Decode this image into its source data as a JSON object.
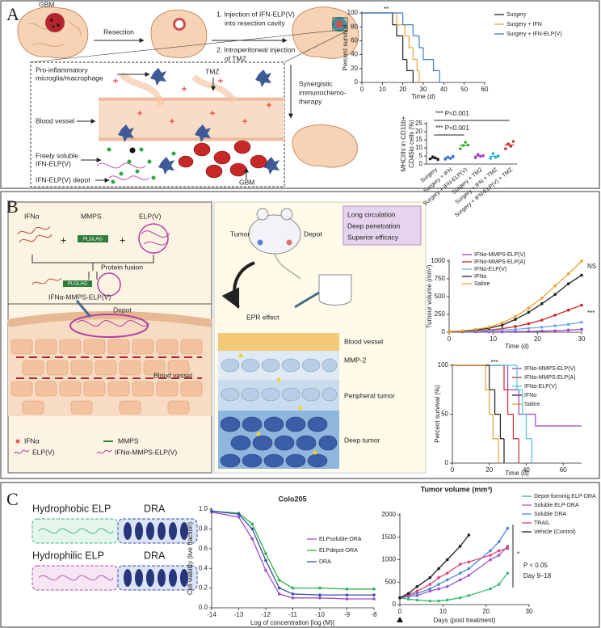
{
  "panels": {
    "a": {
      "label": "A",
      "gbm": "GBM",
      "resection": "Resection",
      "step1": [
        "1. Injection of IFN-ELP(V)",
        "into resection cavity"
      ],
      "step2": [
        "2. Intraperitoneal injection",
        "of TMZ"
      ],
      "synergy": [
        "Synergistic",
        "immunochemo-",
        "therapy"
      ],
      "microglia": [
        "Pro-inflammatory",
        "microglia/macrophage"
      ],
      "tmz": "TMZ",
      "vessel": "Blood vessel",
      "soluble": [
        "Freely soluble",
        "IFN-ELP(V)"
      ],
      "depot": "IFN-ELP(V) depot",
      "gbm2": "GBM"
    },
    "b": {
      "label": "B",
      "ifn": "IFNα",
      "mmps": "MMPS",
      "elp": "ELP(V)",
      "linker": "PLGLAG",
      "fusion": "Protein fusion",
      "linker2": "PLGLAG",
      "product": "IFNα-MMPS-ELP(V)",
      "depot": "Depot",
      "vessel": "Blood vessel",
      "legend": [
        "IFNα",
        "MMPS",
        "ELP(V)",
        "IFNα-MMPS-ELP(V)"
      ],
      "features": [
        "Long circulation",
        "Deep penetration",
        "Superior efficacy"
      ],
      "tumor": "Tumor",
      "depot2": "Depot",
      "epr": "EPR effect",
      "layers": [
        "Blood vessel",
        "MMP-2",
        "Peripheral tumor",
        "Deep tumor"
      ]
    },
    "c": {
      "label": "C",
      "elps": [
        "Hydrophobic ELP",
        "Hydrophilic ELP"
      ],
      "dra": [
        "DRA",
        "DRA"
      ]
    }
  },
  "chart_data": [
    {
      "type": "step",
      "ylabel": "Percent survival",
      "xlabel": "Time (d)",
      "xlim": [
        0,
        60
      ],
      "xticks": [
        0,
        10,
        20,
        30,
        40,
        50,
        60
      ],
      "ylim": [
        0,
        100
      ],
      "yticks": [
        0,
        20,
        40,
        60,
        80,
        100
      ],
      "annotations": [
        "**"
      ],
      "series": [
        {
          "name": "Surgery",
          "color": "#222222",
          "x": [
            0,
            15,
            17,
            20,
            22,
            25
          ],
          "values": [
            100,
            83,
            67,
            33,
            17,
            0
          ]
        },
        {
          "name": "Surgery + IFN",
          "color": "#e8a33a",
          "x": [
            0,
            17,
            21,
            23,
            25,
            27,
            28
          ],
          "values": [
            100,
            83,
            67,
            50,
            33,
            17,
            0
          ]
        },
        {
          "name": "Surgery + IFN-ELP(V)",
          "color": "#3a7fc4",
          "x": [
            0,
            20,
            25,
            28,
            30,
            35,
            38
          ],
          "values": [
            100,
            83,
            67,
            50,
            33,
            17,
            0
          ]
        }
      ]
    },
    {
      "type": "dot",
      "ylabel": [
        "MHCIIhi in CD11b+",
        "CD45lo cells (%)"
      ],
      "ylim": [
        0,
        25
      ],
      "yticks": [
        0,
        5,
        10,
        15,
        20,
        25
      ],
      "annotations": [
        "*** P<0.001",
        "*** P<0.001"
      ],
      "categories": [
        "Surgery",
        "Surgery + IFN",
        "Surgery + IFN-ELP(V)",
        "Surgery + TMZ",
        "Surgery + IFN + TMZ",
        "Surgery + IFN-ELP(V) + TMZ"
      ],
      "colors": [
        "#222222",
        "#2e6fd0",
        "#3ab03a",
        "#a040c0",
        "#22b0d0",
        "#d03030"
      ],
      "points": [
        [
          3.2,
          4.5,
          3.8,
          2.8
        ],
        [
          3.0,
          4.2,
          3.5,
          4.8
        ],
        [
          9.5,
          11.5,
          13.5,
          11.8
        ],
        [
          4.0,
          6.0,
          4.8,
          5.2
        ],
        [
          3.5,
          6.5,
          4.2,
          5.0
        ],
        [
          9.5,
          12.5,
          11.0,
          14.0
        ]
      ],
      "means": [
        3.6,
        3.9,
        11.6,
        5.0,
        4.8,
        11.8
      ],
      "sem": [
        0.4,
        0.4,
        0.8,
        0.4,
        0.6,
        1.0
      ]
    },
    {
      "type": "line",
      "ylabel": "Tumour volume (mm³)",
      "xlabel": "Time (d)",
      "xlim": [
        0,
        30
      ],
      "xticks": [
        0,
        10,
        20,
        30
      ],
      "ylim": [
        0,
        1000
      ],
      "yticks": [
        0,
        250,
        500,
        750,
        1000
      ],
      "annotations": [
        "NS",
        "***"
      ],
      "x": [
        0,
        3,
        6,
        9,
        12,
        15,
        18,
        21,
        24,
        27,
        30
      ],
      "series": [
        {
          "name": "IFNα-MMPS-ELP(V)",
          "color": "#a040c0",
          "values": [
            10,
            5,
            5,
            5,
            5,
            10,
            10,
            15,
            20,
            30,
            40
          ]
        },
        {
          "name": "IFNα-MMPS-ELP(A)",
          "color": "#d02828",
          "values": [
            10,
            15,
            20,
            30,
            50,
            80,
            120,
            170,
            240,
            310,
            380
          ]
        },
        {
          "name": "IFNα-ELP(V)",
          "color": "#6aaee0",
          "values": [
            10,
            10,
            15,
            20,
            30,
            40,
            55,
            70,
            90,
            110,
            140
          ]
        },
        {
          "name": "IFNα",
          "color": "#222222",
          "values": [
            10,
            15,
            30,
            55,
            100,
            180,
            280,
            400,
            530,
            680,
            800
          ]
        },
        {
          "name": "Saline",
          "color": "#f0a030",
          "values": [
            10,
            20,
            40,
            70,
            130,
            220,
            340,
            480,
            650,
            820,
            1000
          ]
        }
      ]
    },
    {
      "type": "step",
      "ylabel": "Percent survival (%)",
      "xlabel": "Time (d)",
      "xlim": [
        0,
        70
      ],
      "xticks": [
        0,
        20,
        40,
        60
      ],
      "ylim": [
        0,
        100
      ],
      "yticks": [
        0,
        50,
        100
      ],
      "annotations": [
        "***"
      ],
      "series": [
        {
          "name": "IFNα-MMPS-ELP(V)",
          "color": "#a040c0",
          "x": [
            0,
            30,
            36,
            45
          ],
          "values": [
            100,
            75,
            50,
            38
          ]
        },
        {
          "name": "IFNα-MMPS-ELP(A)",
          "color": "#d02828",
          "x": [
            0,
            28,
            30,
            33,
            36
          ],
          "values": [
            100,
            75,
            50,
            25,
            0
          ]
        },
        {
          "name": "IFNα-ELP(V)",
          "color": "#4ec3d8",
          "x": [
            0,
            35,
            38,
            40,
            43
          ],
          "values": [
            100,
            75,
            50,
            25,
            0
          ]
        },
        {
          "name": "IFNα",
          "color": "#222222",
          "x": [
            0,
            20,
            23,
            26,
            28
          ],
          "values": [
            100,
            75,
            50,
            25,
            0
          ]
        },
        {
          "name": "Saline",
          "color": "#f0a030",
          "x": [
            0,
            18,
            20,
            22,
            25
          ],
          "values": [
            100,
            75,
            50,
            25,
            0
          ]
        }
      ]
    },
    {
      "type": "line",
      "title": "Colo205",
      "ylabel": "Cell viability (live fraction)",
      "xlabel": "Log of concentration [log (M)]",
      "xlim": [
        -14,
        -8
      ],
      "xticks": [
        -14,
        -13,
        -12,
        -11,
        -10,
        -9,
        -8
      ],
      "ylim": [
        0,
        1
      ],
      "yticks": [
        {
          "value": 0,
          "label": "0.0"
        },
        0.2,
        0.4,
        0.6,
        0.8,
        {
          "value": 1,
          "label": "1.0"
        }
      ],
      "x": [
        -14,
        -13,
        -12.5,
        -12,
        -11.5,
        -11,
        -10,
        -9,
        -8
      ],
      "series": [
        {
          "name": "ELPsoluble-DRA",
          "color": "#9b4fc2",
          "values": [
            0.97,
            0.92,
            0.7,
            0.38,
            0.14,
            0.1,
            0.1,
            0.09,
            0.09
          ]
        },
        {
          "name": "ELPdepot-DRA",
          "color": "#2fb34a",
          "values": [
            0.98,
            0.96,
            0.85,
            0.55,
            0.28,
            0.2,
            0.2,
            0.19,
            0.19
          ]
        },
        {
          "name": "DRA",
          "color": "#3b4fa8",
          "values": [
            0.98,
            0.95,
            0.8,
            0.48,
            0.2,
            0.14,
            0.13,
            0.13,
            0.13
          ]
        }
      ]
    },
    {
      "type": "line",
      "title": "Tumor volume (mm³)",
      "xlabel": "Days (post treatment)",
      "xlim": [
        0,
        30
      ],
      "xticks": [
        0,
        10,
        20,
        30
      ],
      "ylim": [
        0,
        2000
      ],
      "yticks": [
        0,
        500,
        1000,
        1500,
        2000
      ],
      "annotations": [
        "*",
        "P < 0.05",
        "Day 9–18"
      ],
      "x": [
        0,
        2,
        4,
        7,
        9,
        11,
        14,
        16,
        21,
        23,
        25
      ],
      "series": [
        {
          "name": "Depot-forming ELP-DRA",
          "color": "#3cb878",
          "values": [
            150,
            120,
            100,
            80,
            80,
            100,
            150,
            200,
            350,
            450,
            700
          ]
        },
        {
          "name": "Soluble ELP-DRA",
          "color": "#9a56c8",
          "values": [
            150,
            180,
            200,
            300,
            350,
            400,
            550,
            650,
            1000,
            1100,
            1300
          ]
        },
        {
          "name": "Soluble DRA",
          "color": "#4a8ad0",
          "values": [
            150,
            200,
            250,
            350,
            450,
            550,
            700,
            800,
            1200,
            1400,
            1700
          ]
        },
        {
          "name": "TRAIL",
          "color": "#e0457a",
          "values": [
            150,
            220,
            300,
            450,
            600,
            700,
            900,
            950,
            1100,
            1200,
            1250
          ]
        },
        {
          "name": "Vehicle (Control)",
          "color": "#222222",
          "values": [
            150,
            250,
            400,
            600,
            800,
            1000,
            1300,
            1550,
            null,
            null,
            null
          ]
        }
      ]
    }
  ]
}
